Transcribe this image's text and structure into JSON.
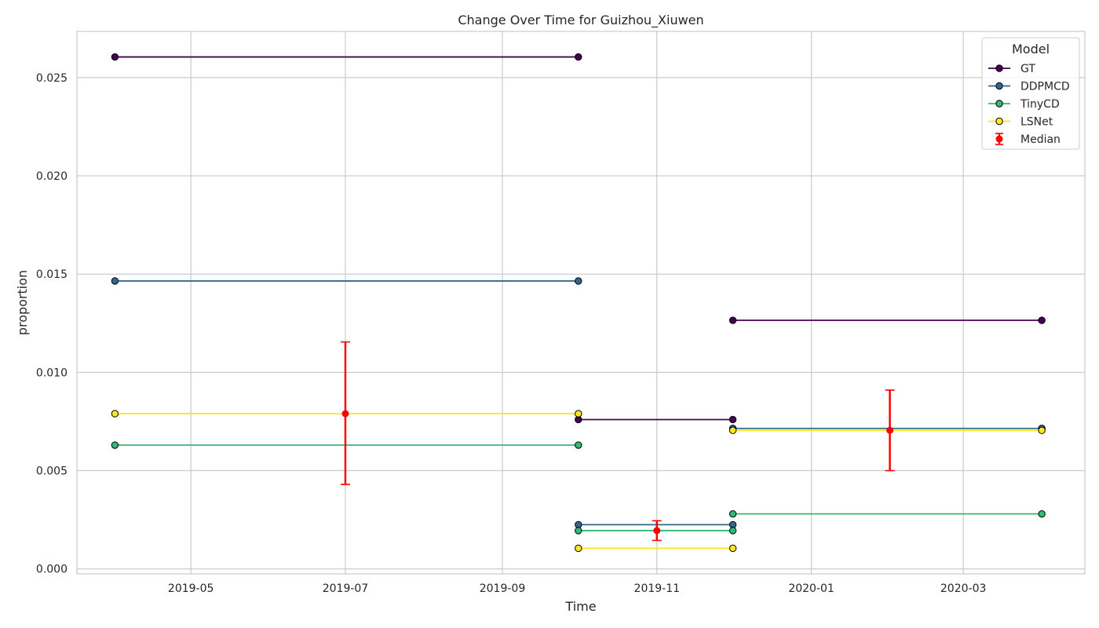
{
  "chart_data": {
    "type": "line",
    "title": "Change Over Time for Guizhou_Xiuwen",
    "xlabel": "Time",
    "ylabel": "proportion",
    "x_ticks": [
      "2019-05",
      "2019-07",
      "2019-09",
      "2019-11",
      "2020-01",
      "2020-03"
    ],
    "y_ticks": [
      "0.000",
      "0.005",
      "0.010",
      "0.015",
      "0.020",
      "0.025"
    ],
    "xlim": [
      "2019-03-17",
      "2020-04-18"
    ],
    "ylim": [
      -0.00025,
      0.02735
    ],
    "grid": true,
    "legend": {
      "title": "Model",
      "placement": "top-right"
    },
    "series": [
      {
        "name": "GT",
        "color": "#440154",
        "segments": [
          [
            [
              "2019-04-01",
              0.02605
            ],
            [
              "2019-10-01",
              0.02605
            ]
          ],
          [
            [
              "2019-10-01",
              0.0076
            ],
            [
              "2019-12-01",
              0.0076
            ]
          ],
          [
            [
              "2019-12-01",
              0.01265
            ],
            [
              "2020-04-01",
              0.01265
            ]
          ]
        ]
      },
      {
        "name": "DDPMCD",
        "color": "#31688e",
        "segments": [
          [
            [
              "2019-04-01",
              0.01465
            ],
            [
              "2019-10-01",
              0.01465
            ]
          ],
          [
            [
              "2019-10-01",
              0.00225
            ],
            [
              "2019-12-01",
              0.00225
            ]
          ],
          [
            [
              "2019-12-01",
              0.00715
            ],
            [
              "2020-04-01",
              0.00715
            ]
          ]
        ]
      },
      {
        "name": "TinyCD",
        "color": "#35b779",
        "segments": [
          [
            [
              "2019-04-01",
              0.0063
            ],
            [
              "2019-10-01",
              0.0063
            ]
          ],
          [
            [
              "2019-10-01",
              0.00195
            ],
            [
              "2019-12-01",
              0.00195
            ]
          ],
          [
            [
              "2019-12-01",
              0.0028
            ],
            [
              "2020-04-01",
              0.0028
            ]
          ]
        ]
      },
      {
        "name": "LSNet",
        "color": "#fde725",
        "segments": [
          [
            [
              "2019-04-01",
              0.0079
            ],
            [
              "2019-10-01",
              0.0079
            ]
          ],
          [
            [
              "2019-10-01",
              0.00105
            ],
            [
              "2019-12-01",
              0.00105
            ]
          ],
          [
            [
              "2019-12-01",
              0.00705
            ],
            [
              "2020-04-01",
              0.00705
            ]
          ]
        ]
      }
    ],
    "median": {
      "name": "Median",
      "color": "#ff0000",
      "points": [
        {
          "x": "2019-07-01",
          "y": 0.0079,
          "low": 0.0043,
          "high": 0.01155
        },
        {
          "x": "2019-11-01",
          "y": 0.00195,
          "low": 0.00145,
          "high": 0.00245
        },
        {
          "x": "2020-02-01",
          "y": 0.00705,
          "low": 0.005,
          "high": 0.0091
        }
      ]
    }
  }
}
